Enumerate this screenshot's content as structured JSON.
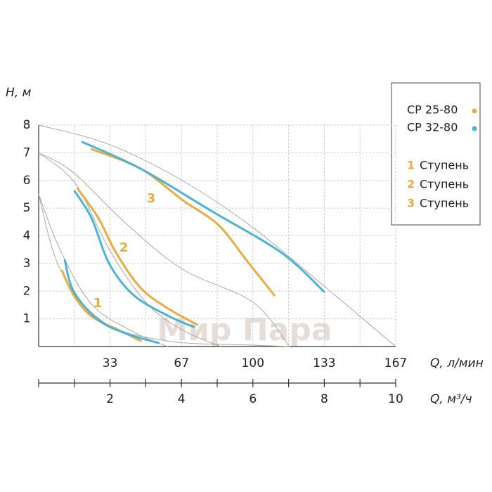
{
  "chart_data": {
    "type": "line",
    "y_label": "H, м",
    "x_label": "Q, л/мин",
    "x2_label": "Q, м³/ч",
    "watermark": "Мир Пара",
    "xlim": [
      0,
      166.67
    ],
    "xticks": [
      {
        "value": 33.33,
        "label": "33"
      },
      {
        "value": 66.67,
        "label": "67"
      },
      100,
      {
        "value": 133.33,
        "label": "133"
      },
      {
        "value": 166.67,
        "label": "167"
      }
    ],
    "xgrid": [
      16.67,
      33.33,
      50,
      66.67,
      83.33,
      100,
      116.67,
      133.33,
      150,
      166.67
    ],
    "ylim": [
      0,
      8
    ],
    "yticks": [
      1,
      2,
      3,
      4,
      5,
      6,
      7,
      8
    ],
    "x2lim": [
      0,
      10
    ],
    "x2ticks": [
      2,
      4,
      6,
      8,
      10
    ],
    "x2_minor_ticks": [
      0,
      1,
      2,
      3,
      4,
      5,
      6,
      7,
      8,
      9,
      10
    ],
    "grid": true,
    "steps": [
      "1",
      "2",
      "3"
    ],
    "step_label": "Ступень",
    "step_color": "#e8ac45",
    "series": [
      {
        "name": "CP 25-80",
        "color": "#e8ac45",
        "curves": [
          {
            "x": [
              10.9,
              16.4,
              24.7,
              37.8,
              47.7
            ],
            "values": [
              2.74,
              1.85,
              1.09,
              0.58,
              0.2
            ]
          },
          {
            "x": [
              18.1,
              27.9,
              36.2,
              47.7,
              60.9,
              74
            ],
            "values": [
              5.71,
              4.64,
              3.38,
              2.11,
              1.35,
              0.79
            ]
          },
          {
            "x": [
              24.7,
              47.7,
              67.4,
              83.9,
              97,
              110
            ],
            "values": [
              7.13,
              6.42,
              5.28,
              4.39,
              3.12,
              1.85
            ]
          }
        ]
      },
      {
        "name": "CP 32-80",
        "color": "#4db3d5",
        "curves": [
          {
            "x": [
              12.2,
              16.4,
              27.9,
              41.1,
              55.9
            ],
            "values": [
              3.12,
              1.98,
              0.96,
              0.46,
              0.13
            ]
          },
          {
            "x": [
              16.8,
              24.7,
              32.9,
              44.4,
              60.9,
              72.4
            ],
            "values": [
              5.61,
              4.64,
              3.0,
              1.85,
              1.09,
              0.71
            ]
          },
          {
            "x": [
              20.4,
              47.7,
              80.6,
              113.5,
              133.2
            ],
            "values": [
              7.39,
              6.42,
              4.9,
              3.38,
              1.98
            ]
          }
        ]
      }
    ],
    "reference_curves": {
      "color": "#a8a8a8",
      "curves": [
        {
          "x": [
            0,
            33,
            67,
            100,
            133,
            166.67
          ],
          "values": [
            8,
            7.3,
            6,
            4.3,
            2.2,
            0
          ]
        },
        {
          "x": [
            0,
            16,
            40,
            67,
            100,
            117
          ],
          "values": [
            7,
            6.3,
            4.5,
            2.8,
            1.6,
            0
          ]
        },
        {
          "x": [
            0,
            17,
            33,
            50,
            67,
            85
          ],
          "values": [
            7,
            5.9,
            3.5,
            1.6,
            0.6,
            0
          ]
        },
        {
          "x": [
            0,
            10,
            25,
            45,
            60
          ],
          "values": [
            5.5,
            3.5,
            1.5,
            0.5,
            0
          ]
        },
        {
          "x": [
            0,
            10,
            30,
            60,
            100,
            117
          ],
          "values": [
            5.5,
            2.8,
            0.9,
            0.2,
            0.05,
            0
          ]
        }
      ]
    }
  }
}
